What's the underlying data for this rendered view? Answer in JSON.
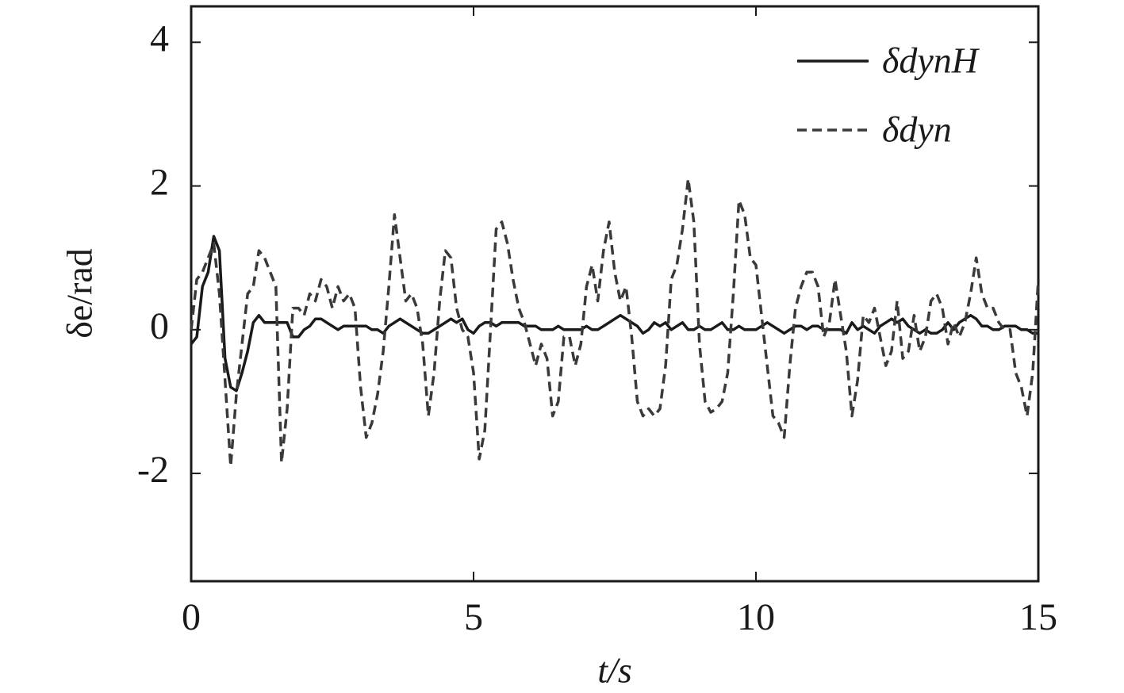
{
  "chart_data": {
    "type": "line",
    "x_label": "t/s",
    "y_label": "δe/rad",
    "xlim": [
      0,
      15
    ],
    "xticks": [
      0,
      5,
      10,
      15
    ],
    "ylim": [
      -3.5,
      4.5
    ],
    "yticks": [
      -2,
      0,
      2,
      4
    ],
    "legend": "upper right",
    "x": [
      0,
      0.1,
      0.2,
      0.3,
      0.4,
      0.5,
      0.6,
      0.7,
      0.8,
      0.9,
      1,
      1.1,
      1.2,
      1.3,
      1.4,
      1.5,
      1.6,
      1.7,
      1.8,
      1.9,
      2,
      2.1,
      2.2,
      2.3,
      2.4,
      2.5,
      2.6,
      2.7,
      2.8,
      2.9,
      3,
      3.1,
      3.2,
      3.3,
      3.4,
      3.5,
      3.6,
      3.7,
      3.8,
      3.9,
      4,
      4.1,
      4.2,
      4.3,
      4.4,
      4.5,
      4.6,
      4.7,
      4.8,
      4.9,
      5,
      5.1,
      5.2,
      5.3,
      5.4,
      5.5,
      5.6,
      5.7,
      5.8,
      5.9,
      6,
      6.1,
      6.2,
      6.3,
      6.4,
      6.5,
      6.6,
      6.7,
      6.8,
      6.9,
      7,
      7.1,
      7.2,
      7.3,
      7.4,
      7.5,
      7.6,
      7.7,
      7.8,
      7.9,
      8,
      8.1,
      8.2,
      8.3,
      8.4,
      8.5,
      8.6,
      8.7,
      8.8,
      8.9,
      9,
      9.1,
      9.2,
      9.3,
      9.4,
      9.5,
      9.6,
      9.7,
      9.8,
      9.9,
      10,
      10.1,
      10.2,
      10.3,
      10.4,
      10.5,
      10.6,
      10.7,
      10.8,
      10.9,
      11,
      11.1,
      11.2,
      11.3,
      11.4,
      11.5,
      11.6,
      11.7,
      11.8,
      11.9,
      12,
      12.1,
      12.2,
      12.3,
      12.4,
      12.5,
      12.6,
      12.7,
      12.8,
      12.9,
      13,
      13.1,
      13.2,
      13.3,
      13.4,
      13.5,
      13.6,
      13.7,
      13.8,
      13.9,
      14,
      14.1,
      14.2,
      14.3,
      14.4,
      14.5,
      14.6,
      14.7,
      14.8,
      14.9,
      15
    ],
    "series": [
      {
        "name": "δdynH",
        "color": "#1a1a1a",
        "dash": false,
        "values": [
          -0.2,
          -0.1,
          0.6,
          0.8,
          1.3,
          1.1,
          -0.4,
          -0.8,
          -0.85,
          -0.6,
          -0.3,
          0.1,
          0.2,
          0.1,
          0.1,
          0.1,
          0.1,
          0.1,
          -0.1,
          -0.1,
          0,
          0.05,
          0.15,
          0.15,
          0.1,
          0.05,
          0,
          0.05,
          0.05,
          0.05,
          0.05,
          0.05,
          0,
          0,
          -0.05,
          0.05,
          0.1,
          0.15,
          0.1,
          0.05,
          0,
          -0.05,
          -0.05,
          0,
          0.05,
          0.1,
          0.15,
          0.1,
          0.15,
          0,
          -0.05,
          0.05,
          0.1,
          0.1,
          0.05,
          0.1,
          0.1,
          0.1,
          0.1,
          0.05,
          0.05,
          0.05,
          0,
          0,
          0,
          0.05,
          0,
          0,
          0,
          0,
          0.05,
          0,
          0,
          0.05,
          0.1,
          0.15,
          0.2,
          0.15,
          0.1,
          0.05,
          -0.05,
          0,
          0.1,
          0.05,
          0.1,
          0,
          0.05,
          0.1,
          0,
          0,
          0.05,
          0,
          0,
          0.05,
          0.1,
          0,
          0,
          0.05,
          0,
          0,
          0,
          0.05,
          0.1,
          0.05,
          0,
          -0.05,
          0,
          0.05,
          0.05,
          0,
          0.05,
          0.05,
          0,
          0,
          0,
          0,
          -0.05,
          0.1,
          0,
          0.05,
          0,
          -0.05,
          0.05,
          0.1,
          0.15,
          0.1,
          0.15,
          0.05,
          0,
          -0.05,
          0,
          -0.05,
          -0.05,
          0,
          0.1,
          0,
          0.1,
          0.15,
          0.2,
          0.15,
          0.05,
          0.05,
          0,
          0,
          0.05,
          0.05,
          0.05,
          0,
          0,
          -0.05,
          -0.05
        ]
      },
      {
        "name": "δdyn",
        "color": "#3a3a3a",
        "dash": true,
        "values": [
          0,
          0.7,
          0.8,
          1.0,
          1.2,
          0.5,
          -0.7,
          -1.9,
          -0.9,
          -0.2,
          0.5,
          0.6,
          1.1,
          1.0,
          0.8,
          0.6,
          -1.85,
          -1.1,
          0.3,
          0.3,
          0.2,
          0.5,
          0.4,
          0.7,
          0.6,
          0.3,
          0.6,
          0.4,
          0.5,
          0.3,
          -0.8,
          -1.5,
          -1.3,
          -0.9,
          -0.3,
          0.6,
          1.6,
          1.0,
          0.4,
          0.5,
          0.3,
          -0.2,
          -1.2,
          -0.6,
          0.4,
          1.1,
          1.0,
          0.3,
          0,
          -0.1,
          -0.6,
          -1.8,
          -1.4,
          0,
          1.4,
          1.5,
          1.2,
          0.7,
          0.3,
          0.1,
          -0.2,
          -0.5,
          -0.2,
          -0.4,
          -1.2,
          -1.0,
          -0.1,
          -0.1,
          -0.5,
          -0.2,
          0.6,
          0.9,
          0.4,
          1.1,
          1.5,
          0.8,
          0.4,
          0.6,
          -0.1,
          -1.0,
          -1.2,
          -1.1,
          -1.2,
          -1.1,
          -0.5,
          0.7,
          0.9,
          1.4,
          2.1,
          1.5,
          -0.2,
          -1.0,
          -1.15,
          -1.1,
          -1.0,
          -0.6,
          0.5,
          1.8,
          1.6,
          1.0,
          0.9,
          0.2,
          -0.5,
          -1.2,
          -1.3,
          -1.5,
          -0.5,
          0.3,
          0.6,
          0.8,
          0.8,
          0.6,
          -0.1,
          0.1,
          0.7,
          0.2,
          -0.3,
          -1.2,
          -0.7,
          0.2,
          0.1,
          0.3,
          -0.1,
          -0.5,
          -0.3,
          0.4,
          -0.4,
          -0.3,
          0.2,
          -0.3,
          -0.1,
          0.4,
          0.5,
          0.3,
          -0.2,
          0.1,
          -0.1,
          0.1,
          0.5,
          1.0,
          0.5,
          0.3,
          0.3,
          0.1,
          0,
          0,
          -0.6,
          -0.8,
          -1.2,
          -0.6,
          0.7
        ]
      }
    ]
  }
}
